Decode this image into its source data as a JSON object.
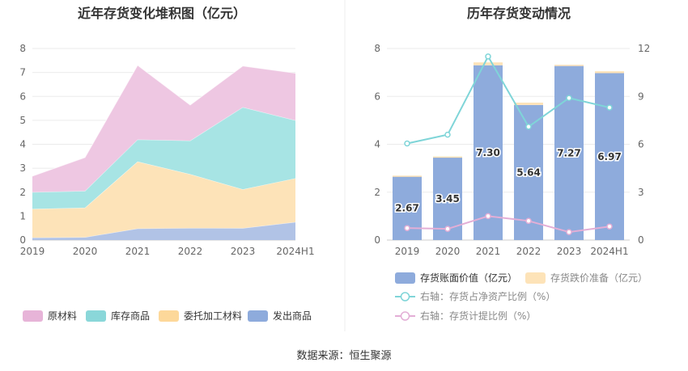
{
  "chart_data": [
    {
      "type": "area",
      "stacked": true,
      "title": "近年存货变化堆积图（亿元）",
      "categories": [
        "2019",
        "2020",
        "2021",
        "2022",
        "2023",
        "2024H1"
      ],
      "yticks": [
        "0",
        "1",
        "2",
        "3",
        "4",
        "5",
        "6",
        "7",
        "8"
      ],
      "ylim": [
        0,
        8
      ],
      "grid": true,
      "legend_position": "bottom",
      "series": [
        {
          "name": "发出商品",
          "color": "#b1c3e6",
          "legend_color": "#8eabdc",
          "values": [
            0.1,
            0.12,
            0.48,
            0.5,
            0.5,
            0.75
          ]
        },
        {
          "name": "委托加工材料",
          "color": "#fde3b8",
          "legend_color": "#fdd89a",
          "values": [
            1.2,
            1.23,
            2.8,
            2.25,
            1.62,
            1.83
          ]
        },
        {
          "name": "库存商品",
          "color": "#a7e4e4",
          "legend_color": "#8ad7d9",
          "values": [
            0.7,
            0.7,
            0.92,
            1.4,
            3.43,
            2.42
          ]
        },
        {
          "name": "原材料",
          "color": "#eec7e2",
          "legend_color": "#e7b4d8",
          "values": [
            0.67,
            1.4,
            3.1,
            1.49,
            1.72,
            1.97
          ]
        }
      ]
    },
    {
      "type": "bar",
      "title": "历年存货变动情况",
      "categories": [
        "2019",
        "2020",
        "2021",
        "2022",
        "2023",
        "2024H1"
      ],
      "yticks_left": [
        "0",
        "2",
        "4",
        "6",
        "8"
      ],
      "yticks_right": [
        "0",
        "3",
        "6",
        "9",
        "12"
      ],
      "ylim_left": [
        0,
        8
      ],
      "ylim_right": [
        0,
        12
      ],
      "grid": true,
      "legend_position": "bottom",
      "series": [
        {
          "name": "存货账面价值（亿元）",
          "kind": "bar",
          "axis": "left",
          "color": "#8eabdc",
          "values": [
            2.67,
            3.45,
            7.3,
            5.64,
            7.27,
            6.97
          ],
          "labels": [
            "2.67",
            "3.45",
            "7.30",
            "5.64",
            "7.27",
            "6.97"
          ]
        },
        {
          "name": "存货跌价准备（亿元）",
          "kind": "bar",
          "axis": "left",
          "color": "#fde3b8",
          "values": [
            0.02,
            0.04,
            0.12,
            0.1,
            0.05,
            0.08
          ]
        },
        {
          "name": "右轴：存货占净资产比例（%）",
          "kind": "line",
          "axis": "right",
          "color": "#7fd5d8",
          "values": [
            6.05,
            6.6,
            11.5,
            7.1,
            8.9,
            8.3
          ]
        },
        {
          "name": "右轴：存货计提比例（%）",
          "kind": "line",
          "axis": "right",
          "color": "#e3aed6",
          "values": [
            0.75,
            0.7,
            1.5,
            1.2,
            0.5,
            0.85
          ]
        }
      ]
    }
  ],
  "footer": {
    "source": "数据来源：恒生聚源"
  }
}
